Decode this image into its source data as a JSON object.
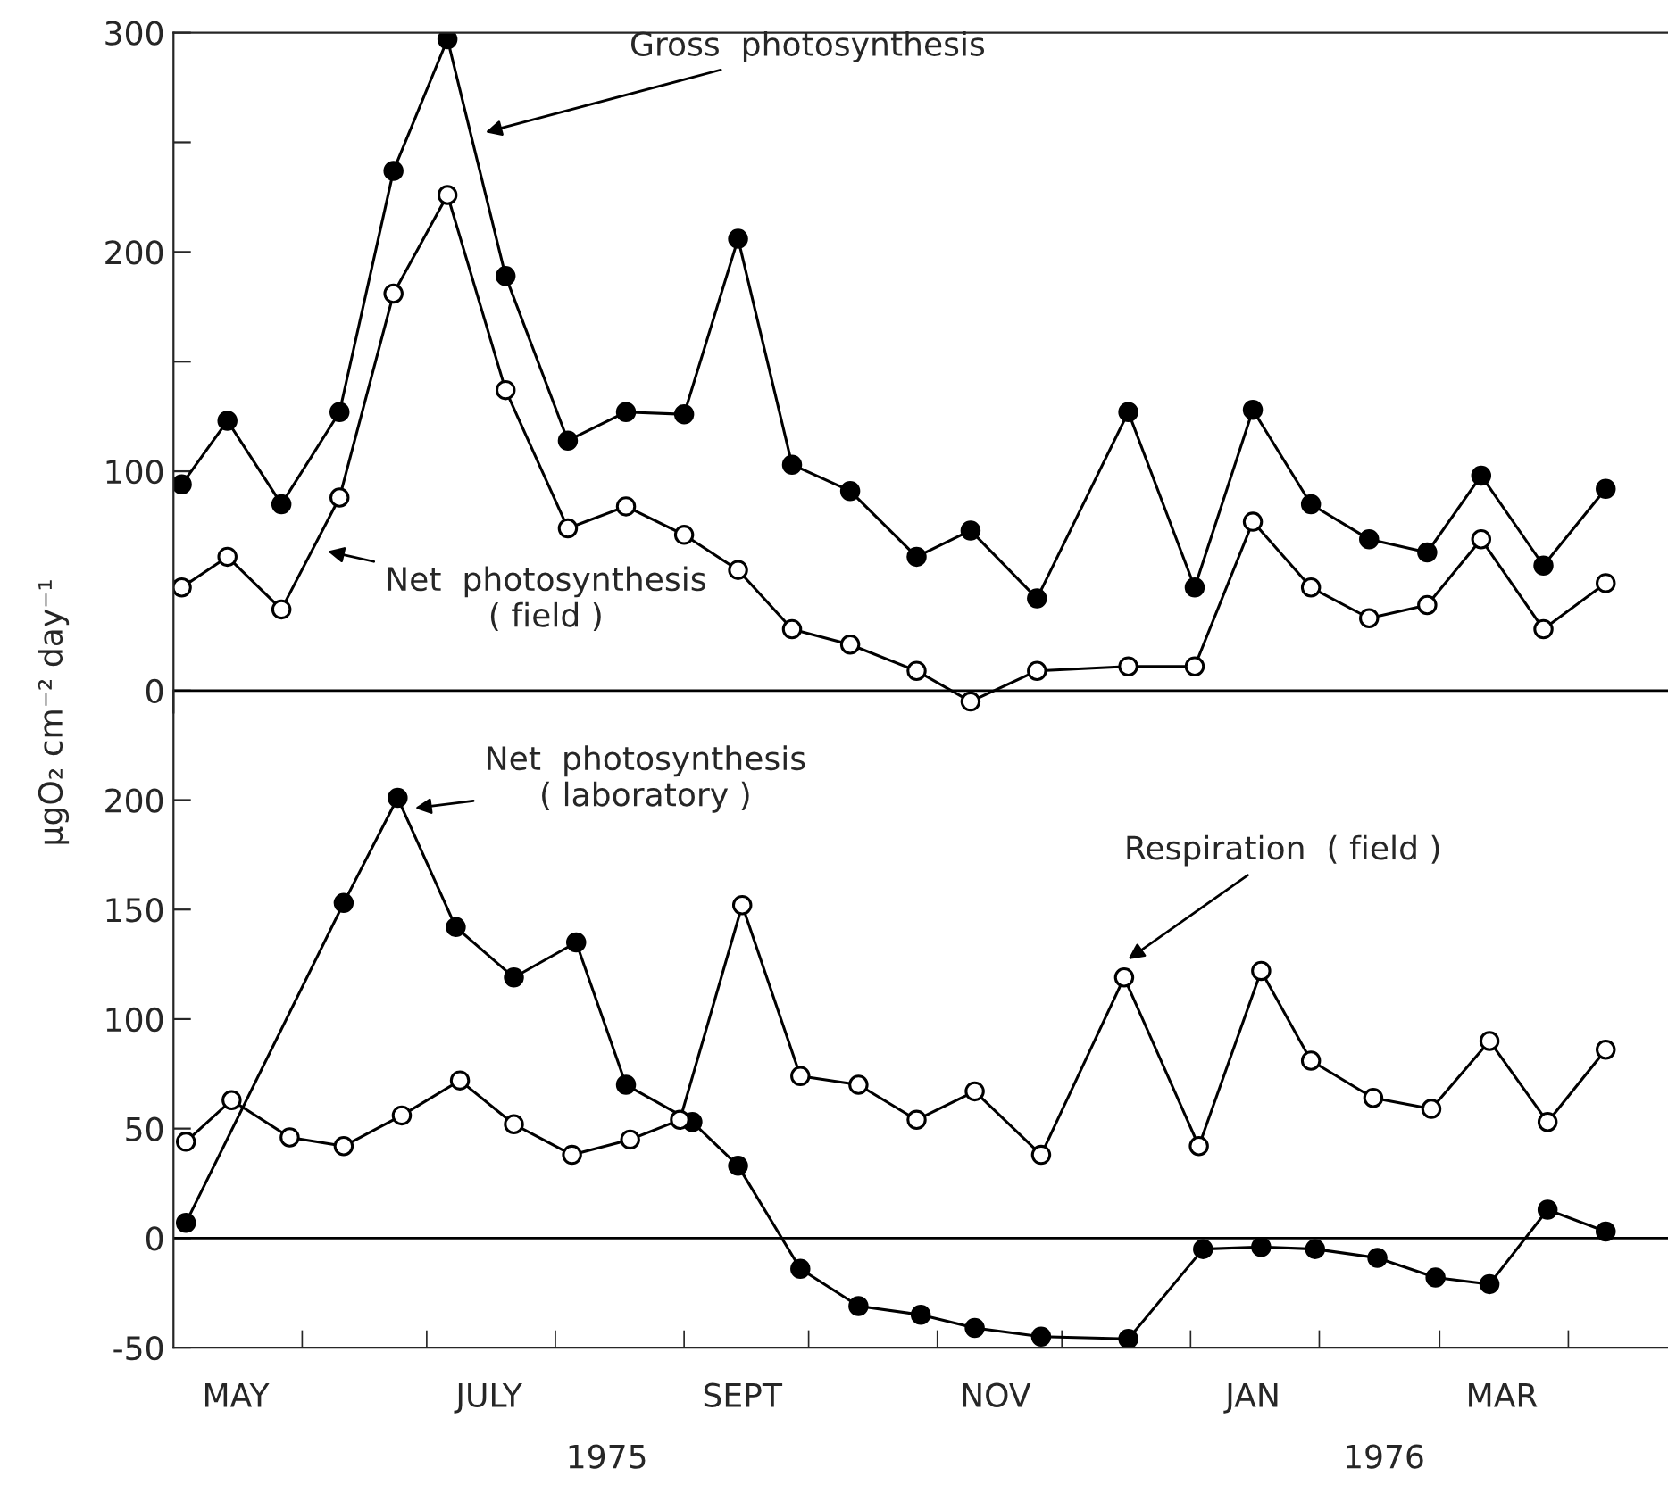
{
  "chart_data": [
    {
      "type": "line",
      "ylabel": "μgO₂ cm⁻² day⁻¹",
      "xlim": [
        "1975-05-01",
        "1976-04-25"
      ],
      "ylim": [
        -10,
        300
      ],
      "yticks": [
        0,
        {
          "value": 50,
          "label": null
        },
        100,
        {
          "value": 150,
          "label": null
        },
        200,
        {
          "value": 250,
          "label": null
        },
        300
      ],
      "tick_labels": "y",
      "marker": "circle",
      "grid": false,
      "legend": false,
      "ref_lines": [
        {
          "axis": "y",
          "value": 0,
          "color": "#000000"
        }
      ],
      "series": [
        {
          "color": "#000000",
          "x": [
            "1975-05-03",
            "1975-05-14",
            "1975-05-27",
            "1975-06-10",
            "1975-06-23",
            "1975-07-06",
            "1975-07-20",
            "1975-08-04",
            "1975-08-18",
            "1975-09-01",
            "1975-09-14",
            "1975-09-27",
            "1975-10-11",
            "1975-10-27",
            "1975-11-09",
            "1975-11-25",
            "1975-12-17",
            "1976-01-02",
            "1976-01-16",
            "1976-01-30",
            "1976-02-13",
            "1976-02-27",
            "1976-03-11",
            "1976-03-26",
            "1976-04-10"
          ],
          "values": [
            94,
            123,
            85,
            127,
            237,
            297,
            189,
            114,
            127,
            126,
            206,
            103,
            91,
            61,
            73,
            42,
            127,
            47,
            128,
            85,
            69,
            63,
            98,
            57,
            92
          ]
        },
        {
          "color": "#ffffff",
          "x": [
            "1975-05-03",
            "1975-05-14",
            "1975-05-27",
            "1975-06-10",
            "1975-06-23",
            "1975-07-06",
            "1975-07-20",
            "1975-08-04",
            "1975-08-18",
            "1975-09-01",
            "1975-09-14",
            "1975-09-27",
            "1975-10-11",
            "1975-10-27",
            "1975-11-09",
            "1975-11-25",
            "1975-12-17",
            "1976-01-02",
            "1976-01-16",
            "1976-01-30",
            "1976-02-13",
            "1976-02-27",
            "1976-03-11",
            "1976-03-26",
            "1976-04-10"
          ],
          "values": [
            47,
            61,
            37,
            88,
            181,
            226,
            137,
            74,
            84,
            71,
            55,
            28,
            21,
            9,
            -5,
            9,
            11,
            11,
            77,
            47,
            33,
            39,
            69,
            28,
            49
          ]
        }
      ],
      "annotations": [
        {
          "text": "Gross  photosynthesis",
          "x": "1975-07-14",
          "y": 254
        },
        {
          "text": "Net  photosynthesis\n( field )",
          "x": "1975-06-06",
          "y": 64
        }
      ]
    },
    {
      "type": "line",
      "xlim": [
        "1975-05-01",
        "1976-04-25"
      ],
      "ylim": [
        -50,
        250
      ],
      "yticks": [
        -50,
        0,
        50,
        100,
        150,
        200
      ],
      "marker": "circle",
      "grid": false,
      "legend": false,
      "xticks": [
        {
          "value": "1975-05-16",
          "label": "MAY"
        },
        {
          "value": "1975-06-01",
          "label": null
        },
        {
          "value": "1975-07-01",
          "label": null
        },
        {
          "value": "1975-07-16",
          "label": "JULY"
        },
        {
          "value": "1975-08-01",
          "label": null
        },
        {
          "value": "1975-09-01",
          "label": null
        },
        {
          "value": "1975-09-15",
          "label": "SEPT"
        },
        {
          "value": "1975-10-01",
          "label": null
        },
        {
          "value": "1975-11-01",
          "label": null
        },
        {
          "value": "1975-11-15",
          "label": "NOV"
        },
        {
          "value": "1975-12-01",
          "label": null
        },
        {
          "value": "1976-01-01",
          "label": null
        },
        {
          "value": "1976-01-16",
          "label": "JAN"
        },
        {
          "value": "1976-02-01",
          "label": null
        },
        {
          "value": "1976-03-01",
          "label": null
        },
        {
          "value": "1976-03-16",
          "label": "MAR"
        },
        {
          "value": "1976-04-01",
          "label": null
        }
      ],
      "ref_lines": [
        {
          "axis": "y",
          "value": 0,
          "color": "#000000"
        }
      ],
      "series": [
        {
          "color": "#000000",
          "x": [
            "1975-05-04",
            "1975-06-11",
            "1975-06-24",
            "1975-07-08",
            "1975-07-22",
            "1975-08-06",
            "1975-08-18",
            "1975-09-03",
            "1975-09-14",
            "1975-09-29",
            "1975-10-13",
            "1975-10-28",
            "1975-11-10",
            "1975-11-26",
            "1975-12-17",
            "1976-01-04",
            "1976-01-18",
            "1976-01-31",
            "1976-02-15",
            "1976-02-29",
            "1976-03-13",
            "1976-03-27",
            "1976-04-10"
          ],
          "values": [
            7,
            153,
            201,
            142,
            119,
            135,
            70,
            53,
            33,
            -14,
            -31,
            -35,
            -41,
            -45,
            -46,
            -5,
            -4,
            -5,
            -9,
            -18,
            -21,
            13,
            3
          ]
        },
        {
          "color": "#ffffff",
          "x": [
            "1975-05-04",
            "1975-05-15",
            "1975-05-29",
            "1975-06-11",
            "1975-06-25",
            "1975-07-09",
            "1975-07-22",
            "1975-08-05",
            "1975-08-19",
            "1975-08-31",
            "1975-09-15",
            "1975-09-29",
            "1975-10-13",
            "1975-10-27",
            "1975-11-10",
            "1975-11-26",
            "1975-12-16",
            "1976-01-03",
            "1976-01-18",
            "1976-01-30",
            "1976-02-14",
            "1976-02-28",
            "1976-03-13",
            "1976-03-27",
            "1976-04-10"
          ],
          "values": [
            44,
            63,
            46,
            42,
            56,
            72,
            52,
            38,
            45,
            54,
            152,
            74,
            70,
            54,
            67,
            38,
            119,
            42,
            122,
            81,
            64,
            59,
            90,
            53,
            86
          ]
        }
      ],
      "annotations": [
        {
          "text": "Net  photosynthesis\n( laboratory )",
          "x": "1975-06-27",
          "y": 196
        },
        {
          "text": "Respiration  ( field )",
          "x": "1975-12-16",
          "y": 126
        },
        "1975",
        "1976"
      ]
    }
  ]
}
